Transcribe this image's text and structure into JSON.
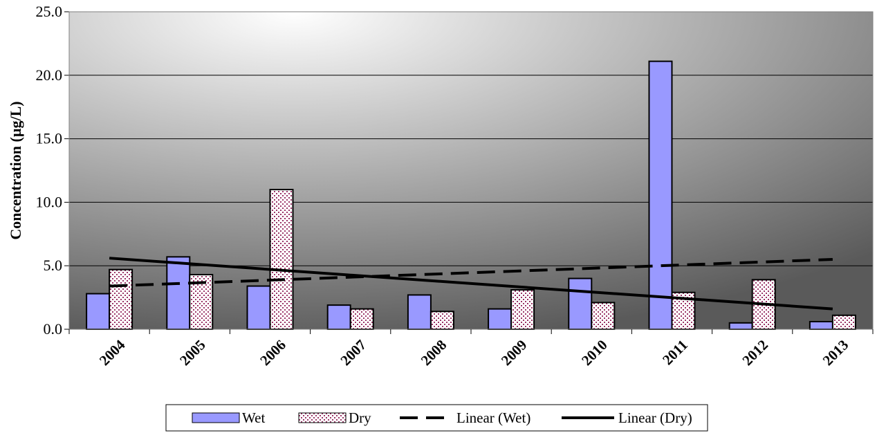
{
  "chart_data": {
    "type": "bar",
    "title": "",
    "xlabel": "",
    "ylabel": "Concentration (µg/L)",
    "ylim": [
      0,
      25
    ],
    "yticks": [
      "0.0",
      "5.0",
      "10.0",
      "15.0",
      "20.0",
      "25.0"
    ],
    "grid": true,
    "legend_position": "bottom",
    "categories": [
      "2004",
      "2005",
      "2006",
      "2007",
      "2008",
      "2009",
      "2010",
      "2011",
      "2012",
      "2013"
    ],
    "series": [
      {
        "name": "Wet",
        "values": [
          2.8,
          5.7,
          3.4,
          1.9,
          2.7,
          1.6,
          4.0,
          21.1,
          0.5,
          0.6
        ],
        "color": "#9999ff",
        "pattern": "solid"
      },
      {
        "name": "Dry",
        "values": [
          4.7,
          4.3,
          11.0,
          1.6,
          1.4,
          3.1,
          2.1,
          2.9,
          3.9,
          1.1
        ],
        "color": "#993366",
        "pattern": "dotted-hatch"
      }
    ],
    "trendlines": [
      {
        "name": "Linear (Wet)",
        "series": "Wet",
        "type": "linear",
        "start": 3.4,
        "end": 5.5,
        "style": "dashed"
      },
      {
        "name": "Linear (Dry)",
        "series": "Dry",
        "type": "linear",
        "start": 5.6,
        "end": 1.6,
        "style": "solid"
      }
    ],
    "background": {
      "gradient": [
        "#ffffff",
        "#5a5a5a"
      ]
    }
  }
}
